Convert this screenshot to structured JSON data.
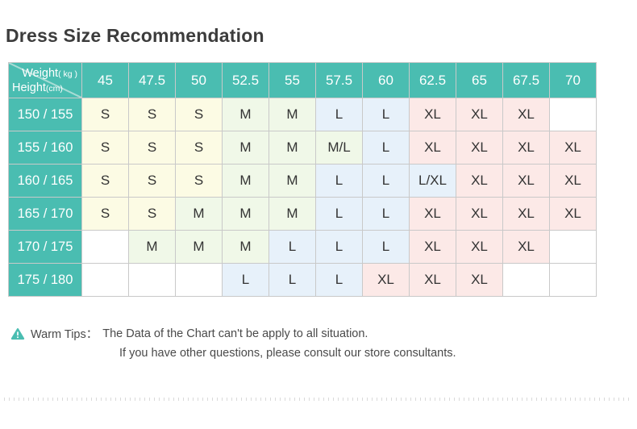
{
  "page": {
    "title": "Dress Size Recommendation"
  },
  "chart_data": {
    "type": "table",
    "title": "Dress Size Recommendation",
    "corner": {
      "weight_label": "Weight",
      "weight_unit": "( kg )",
      "height_label": "Height",
      "height_unit": "(cm)"
    },
    "columns": [
      "45",
      "47.5",
      "50",
      "52.5",
      "55",
      "57.5",
      "60",
      "62.5",
      "65",
      "67.5",
      "70"
    ],
    "rows": [
      {
        "height": "150 / 155",
        "cells": [
          "S",
          "S",
          "S",
          "M",
          "M",
          "L",
          "L",
          "XL",
          "XL",
          "XL",
          ""
        ]
      },
      {
        "height": "155 / 160",
        "cells": [
          "S",
          "S",
          "S",
          "M",
          "M",
          "M/L",
          "L",
          "XL",
          "XL",
          "XL",
          "XL"
        ]
      },
      {
        "height": "160 / 165",
        "cells": [
          "S",
          "S",
          "S",
          "M",
          "M",
          "L",
          "L",
          "L/XL",
          "XL",
          "XL",
          "XL"
        ]
      },
      {
        "height": "165 / 170",
        "cells": [
          "S",
          "S",
          "M",
          "M",
          "M",
          "L",
          "L",
          "XL",
          "XL",
          "XL",
          "XL"
        ]
      },
      {
        "height": "170 / 175",
        "cells": [
          "",
          "M",
          "M",
          "M",
          "L",
          "L",
          "L",
          "XL",
          "XL",
          "XL",
          ""
        ]
      },
      {
        "height": "175 / 180",
        "cells": [
          "",
          "",
          "",
          "L",
          "L",
          "L",
          "XL",
          "XL",
          "XL",
          "",
          ""
        ]
      }
    ]
  },
  "tips": {
    "icon": "warning-triangle",
    "label": "Warm Tips：",
    "line1": "The Data of the Chart can't be apply to all situation.",
    "line2": "If you have other questions, please consult our store consultants."
  },
  "colors": {
    "header_teal": "#4abdb1",
    "warning_icon": "#4abdb1",
    "border": "#c9c9c9",
    "title_text": "#3c3c3c",
    "tip_text": "#4a4a4a",
    "cell_text": "#333333",
    "diagonal_line": "#a8dcd5",
    "size_fill": {
      "S": "#fcfbe4",
      "M": "#f0f8e8",
      "M/L": "#f0f8e8",
      "L": "#e7f1fa",
      "L/XL": "#e7f1fa",
      "XL": "#fce9e7",
      "empty": "#ffffff"
    }
  }
}
